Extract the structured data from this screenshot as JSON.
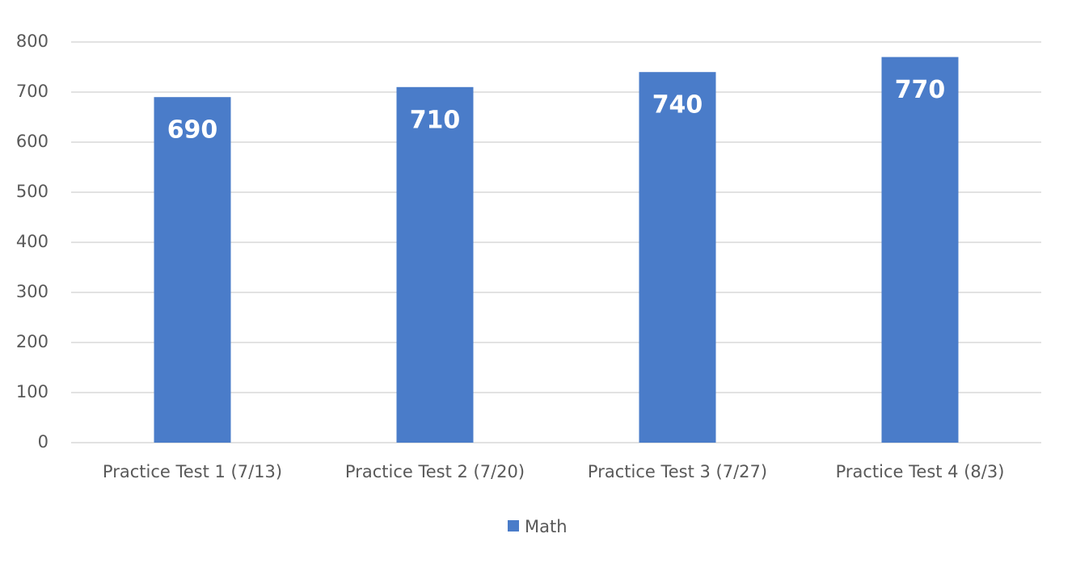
{
  "chart_data": {
    "type": "bar",
    "categories": [
      "Practice Test 1 (7/13)",
      "Practice Test 2 (7/20)",
      "Practice Test 3 (7/27)",
      "Practice Test 4 (8/3)"
    ],
    "series": [
      {
        "name": "Math",
        "color": "#4a7cc9",
        "values": [
          690,
          710,
          740,
          770
        ]
      }
    ],
    "ylim": [
      0,
      800
    ],
    "yticks": [
      0,
      100,
      200,
      300,
      400,
      500,
      600,
      700,
      800
    ],
    "grid": true,
    "legend": "bottom",
    "data_labels": true
  }
}
